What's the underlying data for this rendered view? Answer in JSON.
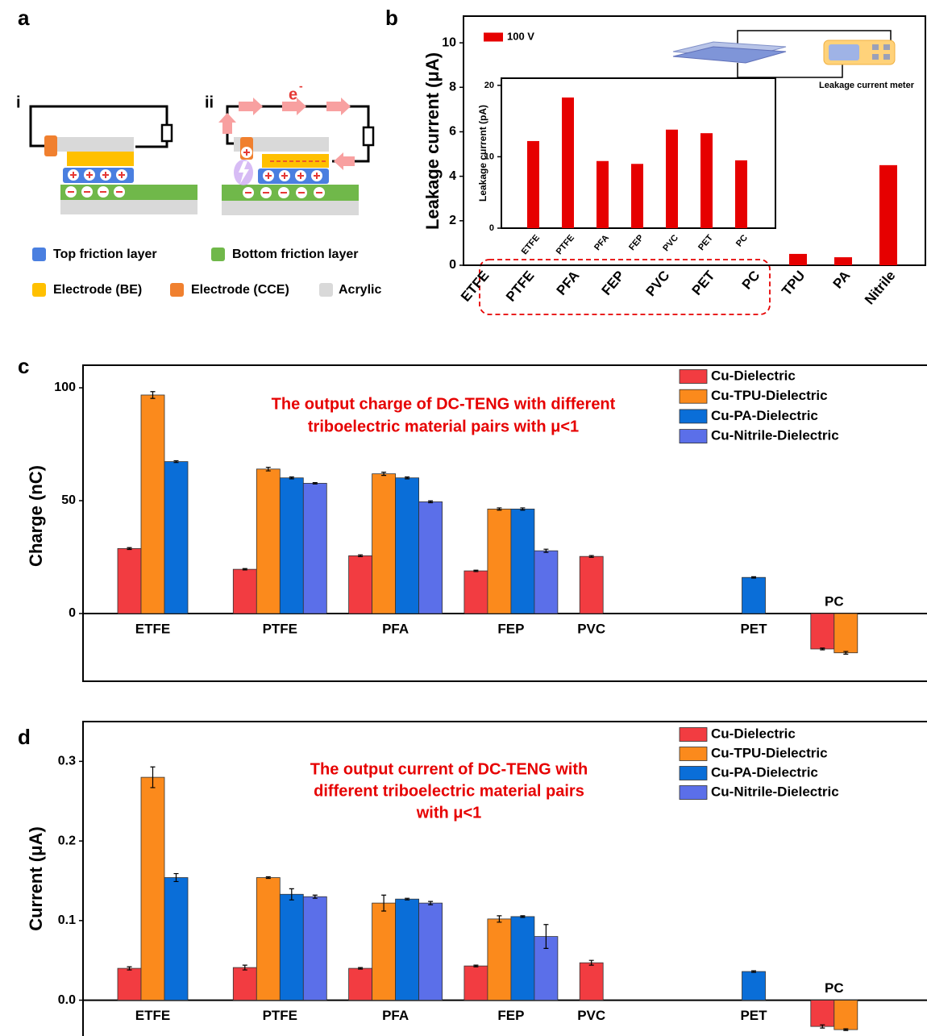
{
  "diagram": {
    "panel": "a",
    "subpanels": [
      "i",
      "ii"
    ],
    "electron": "e",
    "electron_sign": "-",
    "legend": [
      "Top friction layer",
      "Bottom friction layer",
      "Electrode (BE)",
      "Electrode (CCE)",
      "Acrylic"
    ]
  },
  "chart_data": [
    {
      "type": "bar",
      "panel": "b",
      "ylabel": "Leakage current (μA)",
      "categories": [
        "ETFE",
        "PTFE",
        "PFA",
        "FEP",
        "PVC",
        "PET",
        "PC",
        "TPU",
        "PA",
        "Nitrile"
      ],
      "series": [
        {
          "name": "100 V",
          "color": "#e60000",
          "values": [
            null,
            null,
            null,
            null,
            null,
            null,
            null,
            0.51,
            0.36,
            4.5
          ]
        }
      ],
      "ylim": [
        0,
        11.2
      ],
      "yticks": [
        0,
        2,
        4,
        6,
        8,
        10
      ],
      "annotations": [
        "Leakage current meter"
      ]
    },
    {
      "type": "bar",
      "ylabel": "Leakage current (pA)",
      "categories": [
        "ETFE",
        "PTFE",
        "PFA",
        "FEP",
        "PVC",
        "PET",
        "PC"
      ],
      "values": [
        12.2,
        18.3,
        9.4,
        9.0,
        13.8,
        13.3,
        9.5
      ],
      "color": "#e60000",
      "ylim": [
        0,
        21
      ],
      "yticks": [
        0,
        10,
        20
      ]
    },
    {
      "type": "bar",
      "panel": "c",
      "ylabel": "Charge (nC)",
      "annotations": [
        "The output charge of DC-TENG with different",
        "triboelectric material pairs with μ<1"
      ],
      "categories": [
        "ETFE",
        "PTFE",
        "PFA",
        "FEP",
        "PVC",
        "PET",
        "PC"
      ],
      "series": [
        {
          "name": "Cu-Dielectric",
          "color": "#f23c41",
          "values": [
            28.8,
            19.6,
            25.6,
            18.9,
            25.3,
            null,
            -15.7
          ],
          "errors": [
            0.4,
            0.3,
            0.4,
            0.3,
            0.4,
            null,
            0.4
          ]
        },
        {
          "name": "Cu-TPU-Dielectric",
          "color": "#fb8a1c",
          "values": [
            96.8,
            64.0,
            61.9,
            46.3,
            null,
            null,
            -17.4
          ],
          "errors": [
            1.5,
            0.8,
            0.7,
            0.5,
            null,
            null,
            0.6
          ]
        },
        {
          "name": "Cu-PA-Dielectric",
          "color": "#0a6ed8",
          "values": [
            67.3,
            60.1,
            60.1,
            46.3,
            null,
            16.0,
            null
          ],
          "errors": [
            0.4,
            0.4,
            0.4,
            0.5,
            null,
            0.3,
            null
          ]
        },
        {
          "name": "Cu-Nitrile-Dielectric",
          "color": "#5b6fe9",
          "values": [
            null,
            57.7,
            49.5,
            27.8,
            null,
            null,
            null
          ],
          "errors": [
            null,
            0.3,
            0.4,
            0.7,
            null,
            null,
            null
          ]
        }
      ],
      "ylim": [
        -30,
        110
      ],
      "yticks": [
        0,
        50,
        100
      ]
    },
    {
      "type": "bar",
      "panel": "d",
      "ylabel": "Current (μA)",
      "annotations": [
        "The output current of DC-TENG with",
        "different triboelectric material pairs",
        "with μ<1"
      ],
      "categories": [
        "ETFE",
        "PTFE",
        "PFA",
        "FEP",
        "PVC",
        "PET",
        "PC"
      ],
      "series": [
        {
          "name": "Cu-Dielectric",
          "color": "#f23c41",
          "values": [
            0.04,
            0.041,
            0.04,
            0.043,
            0.047,
            null,
            -0.033
          ],
          "errors": [
            0.002,
            0.003,
            0.001,
            0.001,
            0.003,
            null,
            0.002
          ]
        },
        {
          "name": "Cu-TPU-Dielectric",
          "color": "#fb8a1c",
          "values": [
            0.28,
            0.154,
            0.122,
            0.102,
            null,
            null,
            -0.037
          ],
          "errors": [
            0.013,
            0.001,
            0.01,
            0.004,
            null,
            null,
            0.001
          ]
        },
        {
          "name": "Cu-PA-Dielectric",
          "color": "#0a6ed8",
          "values": [
            0.154,
            0.133,
            0.127,
            0.105,
            null,
            0.036,
            null
          ],
          "errors": [
            0.005,
            0.007,
            0.001,
            0.001,
            null,
            0.001,
            null
          ]
        },
        {
          "name": "Cu-Nitrile-Dielectric",
          "color": "#5b6fe9",
          "values": [
            null,
            0.13,
            0.122,
            0.08,
            null,
            null,
            null
          ],
          "errors": [
            null,
            0.002,
            0.002,
            0.015,
            null,
            null,
            null
          ]
        }
      ],
      "ylim": [
        -0.045,
        0.35
      ],
      "yticks": [
        {
          "value": 0,
          "label": "0.0"
        },
        0.1,
        0.2,
        0.3
      ]
    }
  ]
}
